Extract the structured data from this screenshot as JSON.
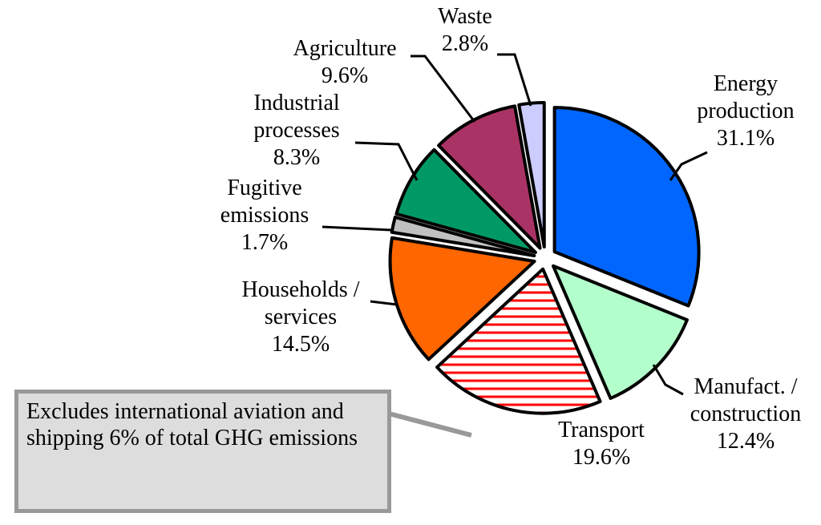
{
  "chart_data": {
    "type": "pie",
    "categories": [
      "Energy production",
      "Manufact. / construction",
      "Transport",
      "Households / services",
      "Fugitive emissions",
      "Industrial processes",
      "Agriculture",
      "Waste"
    ],
    "values": [
      31.1,
      12.4,
      19.6,
      14.5,
      1.7,
      8.3,
      9.6,
      2.8
    ],
    "value_labels": [
      "31.1%",
      "12.4%",
      "19.6%",
      "14.5%",
      "1.7%",
      "8.3%",
      "9.6%",
      "2.8%"
    ],
    "colors": [
      "#0066ff",
      "#b3ffcc",
      "#ff0000",
      "#ff6600",
      "#c0c0c0",
      "#009966",
      "#aa3366",
      "#ccccff"
    ],
    "hatched": [
      false,
      false,
      true,
      false,
      false,
      false,
      false,
      false
    ],
    "annotation": "Excludes international aviation and shipping 6% of total GHG emissions"
  }
}
